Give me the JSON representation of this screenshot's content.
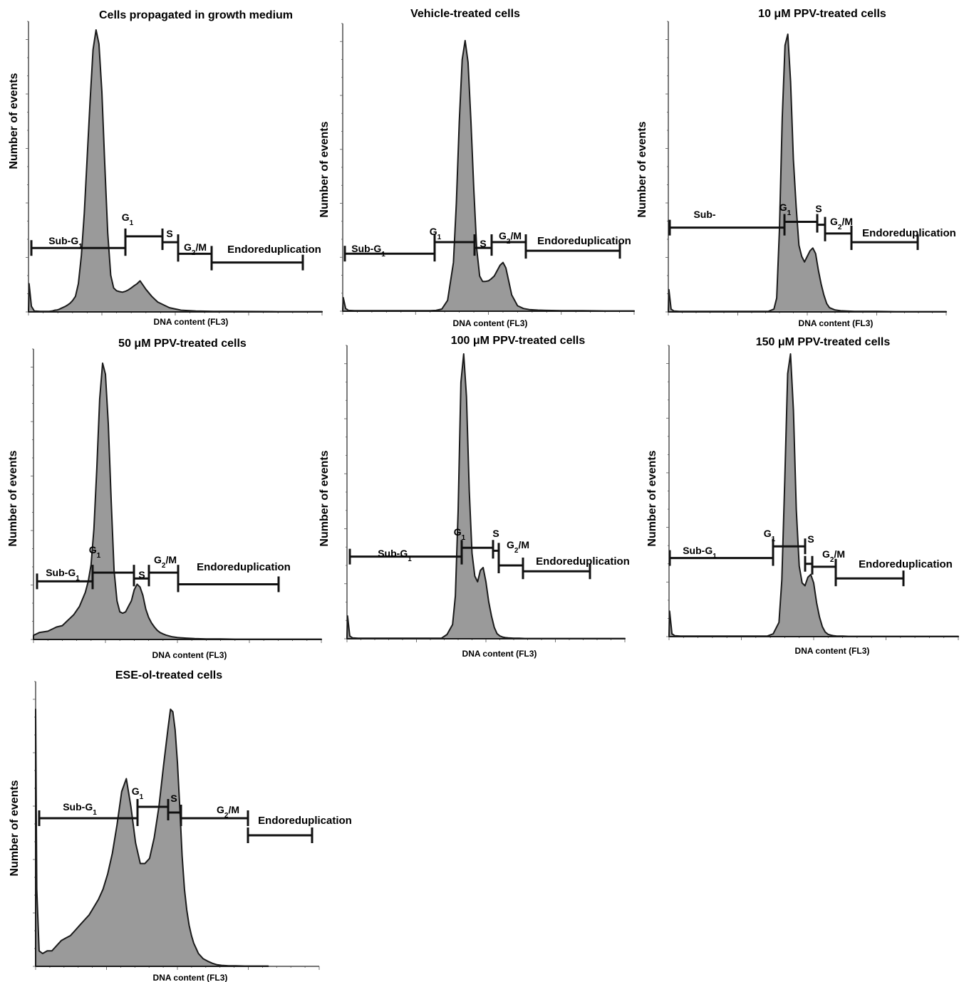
{
  "figure": {
    "xlabel": "DNA content (FL3)",
    "ylabel": "Number of events"
  },
  "chart_data": [
    {
      "type": "area",
      "title": "Cells propagated in growth medium",
      "xlabel": "DNA content (FL3)",
      "ylabel": "Number of events",
      "x_scale": "log",
      "grid": false,
      "x": [
        0,
        0.2,
        1,
        2,
        4,
        5,
        6,
        7,
        8,
        9,
        9.8,
        10.4,
        11,
        11.8,
        12.6,
        13.4,
        14.2,
        15,
        16,
        17,
        18,
        19,
        20,
        21,
        22,
        23,
        24,
        25,
        26,
        27,
        28,
        29,
        30,
        31,
        32,
        33,
        34,
        35,
        36,
        37,
        38,
        40,
        42,
        44,
        48,
        52,
        57,
        63,
        70,
        85,
        100
      ],
      "y": [
        0.006,
        0.1,
        0.02,
        0.003,
        0.002,
        0.002,
        0.002,
        0.002,
        0.003,
        0.006,
        0.007,
        0.009,
        0.012,
        0.016,
        0.02,
        0.025,
        0.031,
        0.04,
        0.055,
        0.1,
        0.2,
        0.35,
        0.55,
        0.75,
        0.93,
        1.0,
        0.95,
        0.78,
        0.52,
        0.28,
        0.13,
        0.085,
        0.075,
        0.072,
        0.07,
        0.073,
        0.078,
        0.085,
        0.093,
        0.1,
        0.11,
        0.08,
        0.055,
        0.035,
        0.015,
        0.006,
        0.003,
        0.002,
        0.002,
        0.001,
        0.001
      ],
      "gates": [
        {
          "label": "Sub-G1",
          "y": 0.22
        },
        {
          "label": "G1",
          "y": 0.26
        },
        {
          "label": "S",
          "y": 0.24
        },
        {
          "label": "G2/M",
          "y": 0.2
        },
        {
          "label": "Endoreduplication",
          "y": 0.17
        }
      ]
    },
    {
      "type": "area",
      "title": "Vehicle-treated cells",
      "xlabel": "DNA content (FL3)",
      "ylabel": "Number of events",
      "x_scale": "log",
      "grid": false,
      "x": [
        0,
        0.2,
        1,
        2,
        4,
        6,
        8,
        10,
        12,
        14,
        16,
        18,
        20,
        22,
        24,
        26,
        28,
        30,
        32,
        34,
        36,
        38,
        39,
        40,
        41,
        42,
        43,
        44,
        45,
        46,
        47,
        48,
        49,
        50,
        51,
        52,
        53,
        54,
        55,
        56,
        57,
        58,
        60,
        62,
        64,
        67,
        70,
        75,
        82,
        90,
        100
      ],
      "y": [
        0.006,
        0.05,
        0.01,
        0.003,
        0.002,
        0.002,
        0.002,
        0.002,
        0.002,
        0.002,
        0.002,
        0.002,
        0.002,
        0.002,
        0.002,
        0.002,
        0.002,
        0.002,
        0.003,
        0.008,
        0.04,
        0.18,
        0.4,
        0.7,
        0.93,
        1.0,
        0.92,
        0.7,
        0.45,
        0.23,
        0.13,
        0.11,
        0.11,
        0.112,
        0.12,
        0.13,
        0.15,
        0.17,
        0.18,
        0.16,
        0.11,
        0.06,
        0.02,
        0.01,
        0.006,
        0.004,
        0.003,
        0.002,
        0.002,
        0.001,
        0.001
      ],
      "gates": [
        {
          "label": "Sub-G1",
          "y": 0.2
        },
        {
          "label": "G1",
          "y": 0.24
        },
        {
          "label": "S",
          "y": 0.22
        },
        {
          "label": "G2/M",
          "y": 0.24
        },
        {
          "label": "Endoreduplication",
          "y": 0.21
        }
      ]
    },
    {
      "type": "area",
      "title": "10 μM PPV-treated cells",
      "xlabel": "DNA content (FL3)",
      "ylabel": "Number of events",
      "x_scale": "log",
      "grid": false,
      "x": [
        0,
        0.2,
        1,
        2,
        4,
        6,
        8,
        10,
        12,
        14,
        16,
        18,
        20,
        22,
        24,
        26,
        28,
        30,
        32,
        34,
        36,
        38,
        39,
        40,
        41,
        42,
        43,
        44,
        45,
        46,
        47,
        48,
        49,
        50,
        51,
        52,
        53,
        54,
        55,
        56,
        57,
        58,
        60,
        62,
        64,
        67,
        70,
        75,
        82,
        90,
        100
      ],
      "y": [
        0.006,
        0.08,
        0.01,
        0.003,
        0.002,
        0.002,
        0.002,
        0.002,
        0.002,
        0.002,
        0.002,
        0.002,
        0.002,
        0.002,
        0.002,
        0.002,
        0.002,
        0.002,
        0.002,
        0.002,
        0.002,
        0.01,
        0.05,
        0.3,
        0.7,
        0.96,
        1.0,
        0.83,
        0.55,
        0.38,
        0.24,
        0.2,
        0.18,
        0.2,
        0.22,
        0.23,
        0.21,
        0.15,
        0.1,
        0.06,
        0.03,
        0.015,
        0.007,
        0.004,
        0.003,
        0.002,
        0.002,
        0.002,
        0.001,
        0.001,
        0.001
      ],
      "gates": [
        {
          "label": "Sub-",
          "y": 0.29
        },
        {
          "label": "G1",
          "y": 0.31
        },
        {
          "label": "S",
          "y": 0.3
        },
        {
          "label": "G2/M",
          "y": 0.27
        },
        {
          "label": "Endoreduplication",
          "y": 0.24
        }
      ]
    },
    {
      "type": "area",
      "title": "50 μM PPV-treated cells",
      "xlabel": "DNA content (FL3)",
      "ylabel": "Number of events",
      "x_scale": "log",
      "grid": false,
      "x": [
        0,
        2,
        5,
        8,
        10,
        12,
        14,
        16,
        18,
        19,
        20,
        21,
        22,
        23,
        24,
        25,
        26,
        27,
        28,
        29,
        30,
        31,
        32,
        33,
        34,
        35,
        36,
        37,
        38,
        39,
        40,
        41,
        42,
        43,
        44,
        45,
        46,
        48,
        50,
        53,
        56,
        60,
        65,
        70,
        80,
        90,
        100
      ],
      "y": [
        0.015,
        0.025,
        0.03,
        0.045,
        0.05,
        0.07,
        0.09,
        0.12,
        0.17,
        0.21,
        0.27,
        0.4,
        0.62,
        0.87,
        1.0,
        0.96,
        0.78,
        0.5,
        0.25,
        0.14,
        0.1,
        0.095,
        0.1,
        0.12,
        0.14,
        0.18,
        0.2,
        0.19,
        0.16,
        0.11,
        0.08,
        0.06,
        0.045,
        0.033,
        0.025,
        0.02,
        0.016,
        0.01,
        0.007,
        0.005,
        0.003,
        0.002,
        0.002,
        0.001,
        0.001,
        0.001,
        0.001
      ],
      "gates": [
        {
          "label": "Sub-G1",
          "y": 0.2
        },
        {
          "label": "G1",
          "y": 0.23
        },
        {
          "label": "S",
          "y": 0.21
        },
        {
          "label": "G2/M",
          "y": 0.23
        },
        {
          "label": "Endoreduplication",
          "y": 0.19
        }
      ]
    },
    {
      "type": "area",
      "title": "100 μM PPV-treated cells",
      "xlabel": "DNA content (FL3)",
      "ylabel": "Number of events",
      "x_scale": "log",
      "grid": false,
      "x": [
        0,
        0.2,
        1,
        2,
        4,
        6,
        8,
        10,
        12,
        14,
        16,
        18,
        20,
        22,
        24,
        26,
        28,
        30,
        32,
        34,
        36,
        38,
        39,
        40,
        41,
        42,
        43,
        44,
        45,
        46,
        47,
        48,
        49,
        50,
        51,
        52,
        53,
        54,
        55,
        56,
        57,
        58,
        60,
        62,
        64,
        67,
        70,
        75,
        82,
        90,
        100
      ],
      "y": [
        0.006,
        0.08,
        0.01,
        0.003,
        0.002,
        0.002,
        0.002,
        0.002,
        0.002,
        0.002,
        0.002,
        0.002,
        0.002,
        0.002,
        0.002,
        0.002,
        0.002,
        0.002,
        0.002,
        0.002,
        0.015,
        0.05,
        0.15,
        0.45,
        0.9,
        1.0,
        0.85,
        0.52,
        0.3,
        0.22,
        0.2,
        0.24,
        0.25,
        0.2,
        0.13,
        0.08,
        0.04,
        0.018,
        0.01,
        0.006,
        0.004,
        0.003,
        0.002,
        0.002,
        0.001,
        0.001,
        0.001,
        0.001,
        0.001,
        0.001,
        0.001
      ],
      "gates": [
        {
          "label": "Sub-G1",
          "y": 0.28
        },
        {
          "label": "G1",
          "y": 0.31
        },
        {
          "label": "S",
          "y": 0.3
        },
        {
          "label": "G2/M",
          "y": 0.25
        },
        {
          "label": "Endoreduplication",
          "y": 0.23
        }
      ]
    },
    {
      "type": "area",
      "title": "150 μM PPV-treated cells",
      "xlabel": "DNA content (FL3)",
      "ylabel": "Number of events",
      "x_scale": "log",
      "grid": false,
      "x": [
        0,
        0.2,
        1,
        2,
        4,
        6,
        8,
        10,
        12,
        14,
        16,
        18,
        20,
        22,
        24,
        26,
        28,
        30,
        32,
        34,
        36,
        38,
        39,
        40,
        41,
        42,
        43,
        44,
        45,
        46,
        47,
        48,
        49,
        50,
        51,
        52,
        53,
        54,
        55,
        56,
        57,
        58,
        60,
        62,
        64,
        67,
        70,
        75,
        82,
        90,
        100
      ],
      "y": [
        0.006,
        0.09,
        0.01,
        0.003,
        0.002,
        0.002,
        0.002,
        0.002,
        0.002,
        0.002,
        0.002,
        0.002,
        0.002,
        0.002,
        0.002,
        0.002,
        0.002,
        0.002,
        0.002,
        0.002,
        0.01,
        0.05,
        0.2,
        0.55,
        0.93,
        1.0,
        0.8,
        0.45,
        0.25,
        0.19,
        0.18,
        0.21,
        0.22,
        0.19,
        0.12,
        0.07,
        0.035,
        0.016,
        0.008,
        0.005,
        0.003,
        0.002,
        0.002,
        0.001,
        0.001,
        0.001,
        0.001,
        0.001,
        0.001,
        0.001,
        0.001
      ],
      "gates": [
        {
          "label": "Sub-G1",
          "y": 0.27
        },
        {
          "label": "G1",
          "y": 0.31
        },
        {
          "label": "S",
          "y": 0.25
        },
        {
          "label": "G2/M",
          "y": 0.24
        },
        {
          "label": "Endoreduplication",
          "y": 0.2
        }
      ]
    },
    {
      "type": "area",
      "title": "ESE-ol-treated cells",
      "xlabel": "DNA content (FL3)",
      "ylabel": "Number of events",
      "x_scale": "log",
      "grid": false,
      "x": [
        0,
        0.5,
        1.5,
        3,
        5,
        7,
        9,
        11,
        13,
        15,
        17,
        19,
        21,
        23,
        25,
        27,
        29,
        31,
        33,
        35,
        37,
        39,
        41,
        43,
        45,
        47,
        49,
        51,
        53,
        55,
        57,
        58,
        59,
        60,
        61,
        62,
        63,
        64,
        65,
        66,
        67,
        68,
        69,
        70,
        72,
        74,
        76,
        78,
        80,
        83,
        86,
        90,
        95,
        100
      ],
      "y": [
        1.0,
        0.3,
        0.06,
        0.05,
        0.06,
        0.06,
        0.08,
        0.1,
        0.11,
        0.12,
        0.14,
        0.16,
        0.18,
        0.2,
        0.23,
        0.26,
        0.3,
        0.36,
        0.44,
        0.55,
        0.68,
        0.73,
        0.62,
        0.48,
        0.4,
        0.4,
        0.42,
        0.5,
        0.62,
        0.78,
        0.93,
        1.0,
        0.99,
        0.92,
        0.79,
        0.62,
        0.43,
        0.3,
        0.22,
        0.16,
        0.12,
        0.09,
        0.07,
        0.05,
        0.03,
        0.02,
        0.012,
        0.006,
        0.004,
        0.002,
        0.002,
        0.001,
        0.001,
        0.001
      ],
      "gates": [
        {
          "label": "Sub-G1",
          "y": 0.52
        },
        {
          "label": "G1",
          "y": 0.56
        },
        {
          "label": "S",
          "y": 0.54
        },
        {
          "label": "G2/M",
          "y": 0.52
        },
        {
          "label": "Endoreduplication",
          "y": 0.46
        }
      ]
    }
  ]
}
